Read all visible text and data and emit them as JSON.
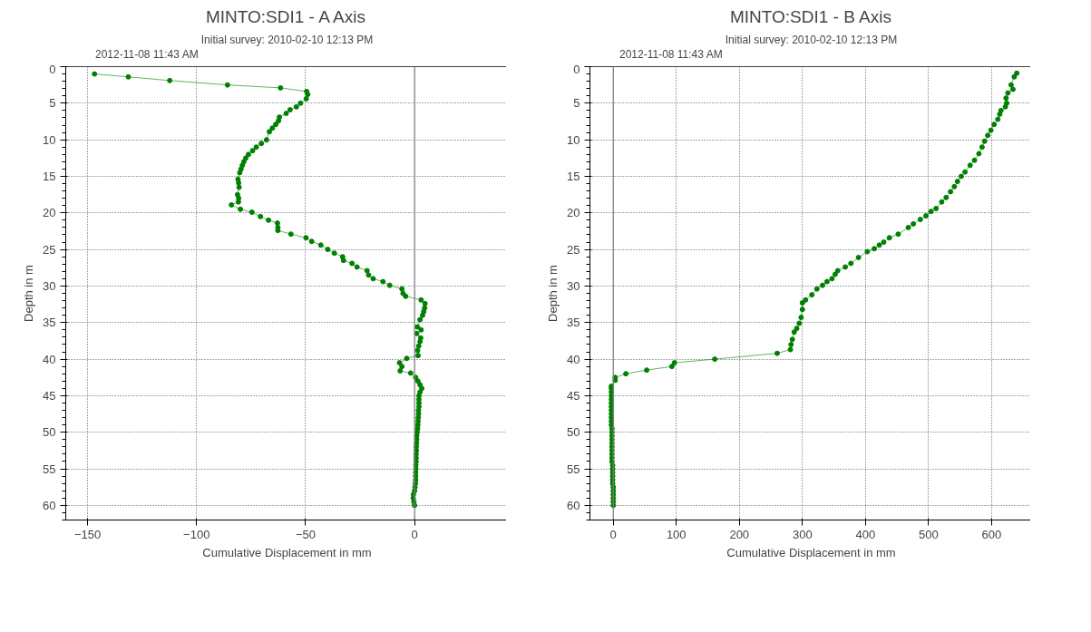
{
  "chart_data": [
    {
      "type": "line",
      "title": "MINTO:SDI1 - A Axis",
      "subtitle": "Initial survey: 2010-02-10 12:13 PM",
      "xlabel": "Cumulative Displacement in mm",
      "ylabel": "Depth in m",
      "xlim": [
        -160,
        43
      ],
      "xticks": [
        -150,
        -100,
        -50,
        0
      ],
      "ylim": [
        62,
        0
      ],
      "yticks": [
        0,
        5,
        10,
        15,
        20,
        25,
        30,
        35,
        40,
        45,
        50,
        55,
        60
      ],
      "grid": true,
      "legend": "top left",
      "marker": "circle",
      "line_style": "solid",
      "ref_lines": [
        {
          "axis": "x",
          "value": 0,
          "color": "#808080"
        }
      ],
      "series": [
        {
          "name": "2012-11-08 11:43 AM",
          "color": "#008000",
          "x": [
            -146.8,
            -131.3,
            -112.3,
            -85.8,
            -61.5,
            -49.5,
            -49,
            -49.7,
            -52.3,
            -54.2,
            -57.1,
            -58.9,
            -62,
            -62.4,
            -63.7,
            -65.2,
            -66.6,
            -67.9,
            -70.3,
            -72.6,
            -74.3,
            -76.2,
            -77.4,
            -78.3,
            -79,
            -79.6,
            -80.2,
            -81,
            -80.7,
            -80.5,
            -81.2,
            -80.7,
            -80.8,
            -84,
            -79.9,
            -74.6,
            -70.7,
            -67,
            -62.9,
            -62.7,
            -62.7,
            -56.7,
            -49.8,
            -47.2,
            -43,
            -39.8,
            -36.8,
            -33,
            -32.6,
            -28.7,
            -26.4,
            -21.8,
            -21.1,
            -19,
            -14.5,
            -11.4,
            -5.8,
            -5.3,
            -4.1,
            3,
            4.8,
            4.6,
            4.2,
            3.7,
            2.5,
            1.3,
            3,
            1,
            2.8,
            2.5,
            1.9,
            1.4,
            1.6,
            -3.6,
            -6.9,
            -5.8,
            -6.6,
            -1.8,
            0.5,
            1.5,
            2.5,
            3.3,
            2.5,
            2,
            2,
            2,
            2,
            1.8,
            1.8,
            1.7,
            1.6,
            1.5,
            1.4,
            1.2,
            1,
            1,
            0.9,
            0.8,
            0.8,
            0.7,
            0.7,
            0.7,
            0.6,
            0.6,
            0.5,
            0.5,
            0.5,
            0.4,
            0.2,
            0,
            -0.5,
            -0.6,
            -0.3,
            0
          ],
          "values": [
            1.0,
            1.4,
            1.9,
            2.5,
            2.9,
            3.4,
            3.8,
            4.4,
            5.0,
            5.5,
            5.9,
            6.4,
            6.9,
            7.4,
            7.9,
            8.4,
            8.9,
            10.0,
            10.5,
            11.0,
            11.5,
            12.0,
            12.5,
            13.0,
            13.5,
            14.0,
            14.5,
            15.4,
            15.9,
            16.5,
            17.5,
            18.0,
            18.5,
            18.9,
            19.5,
            19.9,
            20.5,
            21.0,
            21.4,
            22.0,
            22.4,
            22.9,
            23.4,
            23.9,
            24.4,
            25.0,
            25.5,
            26.0,
            26.5,
            26.9,
            27.4,
            27.9,
            28.5,
            29.0,
            29.4,
            29.9,
            30.4,
            31.0,
            31.4,
            31.9,
            32.4,
            33.0,
            33.5,
            34.0,
            34.6,
            35.6,
            36.0,
            36.5,
            37.1,
            37.6,
            38.2,
            38.8,
            39.5,
            39.9,
            40.5,
            41.0,
            41.6,
            41.9,
            42.5,
            43.0,
            43.5,
            44.0,
            44.5,
            45,
            45.5,
            46,
            46.5,
            47,
            47.5,
            48,
            48.5,
            49,
            49.5,
            50,
            50.5,
            51,
            51.5,
            52,
            52.5,
            53,
            53.5,
            54,
            54.5,
            55,
            55.5,
            56,
            56.5,
            57,
            57.5,
            58,
            58.5,
            59,
            59.5,
            60
          ]
        }
      ]
    },
    {
      "type": "line",
      "title": "MINTO:SDI1 - B Axis",
      "subtitle": "Initial survey: 2010-02-10 12:13 PM",
      "xlabel": "Cumulative Displacement in mm",
      "ylabel": "Depth in m",
      "xlim": [
        -37,
        665
      ],
      "xticks": [
        0,
        100,
        200,
        300,
        400,
        500,
        600
      ],
      "ylim": [
        62,
        0
      ],
      "yticks": [
        0,
        5,
        10,
        15,
        20,
        25,
        30,
        35,
        40,
        45,
        50,
        55,
        60
      ],
      "grid": true,
      "legend": "top left",
      "marker": "circle",
      "line_style": "solid",
      "ref_lines": [
        {
          "axis": "x",
          "value": 0,
          "color": "#808080"
        }
      ],
      "series": [
        {
          "name": "2012-11-08 11:43 AM",
          "color": "#008000",
          "x": [
            640,
            636,
            631,
            634,
            626,
            623,
            624,
            622,
            615,
            613,
            610,
            604,
            599,
            594,
            589,
            585,
            580,
            573,
            566,
            558,
            552,
            546,
            541,
            535,
            528,
            521,
            512,
            504,
            496,
            487,
            476,
            468,
            452,
            438,
            429,
            422,
            414,
            403,
            389,
            377,
            368,
            356,
            352,
            347,
            339,
            332,
            323,
            315,
            305,
            300,
            300,
            298,
            295,
            291,
            287,
            284,
            282,
            281,
            260,
            161,
            97,
            93,
            53,
            20,
            3,
            3,
            -3,
            -3,
            -3,
            -3,
            -3,
            -3,
            -3,
            -3,
            -3,
            -3,
            -3,
            -3,
            -2,
            -2,
            -2,
            -2,
            -2,
            -2,
            -2,
            -2,
            -2,
            -2,
            -1,
            -1,
            -1,
            -1,
            -1,
            -1,
            0,
            0,
            0,
            0,
            0,
            0
          ],
          "values": [
            0.9,
            1.4,
            2.5,
            3.1,
            3.6,
            4.3,
            5.0,
            5.5,
            6.0,
            6.5,
            7.2,
            7.9,
            8.7,
            9.4,
            10.2,
            11.0,
            11.9,
            12.8,
            13.5,
            14.4,
            15.0,
            15.7,
            16.4,
            17.1,
            17.9,
            18.5,
            19.4,
            19.8,
            20.4,
            20.9,
            21.5,
            22.0,
            22.9,
            23.4,
            24.0,
            24.4,
            24.9,
            25.3,
            26.1,
            26.9,
            27.4,
            27.9,
            28.4,
            29.0,
            29.4,
            29.9,
            30.4,
            31.2,
            31.9,
            32.3,
            33.2,
            34.3,
            35.1,
            35.8,
            36.3,
            37.3,
            38.0,
            38.7,
            39.2,
            40.0,
            40.5,
            41.0,
            41.5,
            42.0,
            42.5,
            42.9,
            43.7,
            44,
            44.5,
            45,
            45.5,
            46,
            46.5,
            47,
            47.5,
            48,
            48.5,
            49,
            49.5,
            50,
            50.5,
            51,
            51.5,
            52,
            52.5,
            53,
            53.5,
            54,
            54.5,
            55,
            55.5,
            56,
            56.5,
            57,
            57.5,
            58,
            58.5,
            59,
            59.5,
            60
          ]
        }
      ]
    }
  ]
}
